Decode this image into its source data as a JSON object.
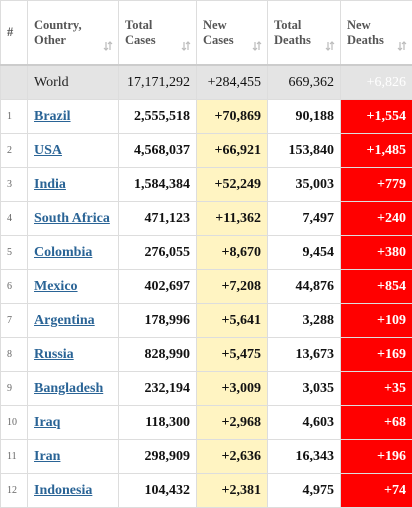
{
  "table": {
    "header": [
      "#",
      "Country,\nOther",
      "Total\nCases",
      "New\nCases",
      "Total\nDeaths",
      "New\nDeaths"
    ],
    "world": [
      "",
      "World",
      "17,171,292",
      "+284,455",
      "669,362",
      "+6,826"
    ],
    "rows": [
      [
        "1",
        "Brazil",
        "2,555,518",
        "+70,869",
        "90,188",
        "+1,554"
      ],
      [
        "2",
        "USA",
        "4,568,037",
        "+66,921",
        "153,840",
        "+1,485"
      ],
      [
        "3",
        "India",
        "1,584,384",
        "+52,249",
        "35,003",
        "+779"
      ],
      [
        "4",
        "South Africa",
        "471,123",
        "+11,362",
        "7,497",
        "+240"
      ],
      [
        "5",
        "Colombia",
        "276,055",
        "+8,670",
        "9,454",
        "+380"
      ],
      [
        "6",
        "Mexico",
        "402,697",
        "+7,208",
        "44,876",
        "+854"
      ],
      [
        "7",
        "Argentina",
        "178,996",
        "+5,641",
        "3,288",
        "+109"
      ],
      [
        "8",
        "Russia",
        "828,990",
        "+5,475",
        "13,673",
        "+169"
      ],
      [
        "9",
        "Bangladesh",
        "232,194",
        "+3,009",
        "3,035",
        "+35"
      ],
      [
        "10",
        "Iraq",
        "118,300",
        "+2,968",
        "4,603",
        "+68"
      ],
      [
        "11",
        "Iran",
        "298,909",
        "+2,636",
        "16,343",
        "+196"
      ],
      [
        "12",
        "Indonesia",
        "104,432",
        "+2,381",
        "4,975",
        "+74"
      ]
    ]
  }
}
